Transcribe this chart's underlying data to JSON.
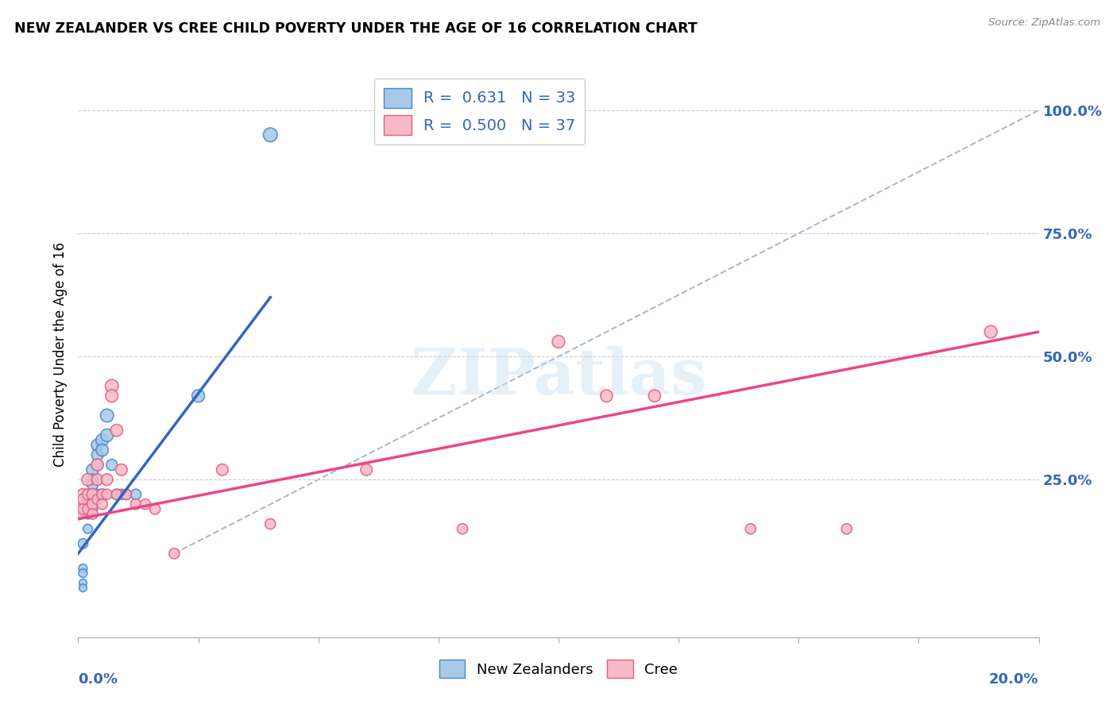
{
  "title": "NEW ZEALANDER VS CREE CHILD POVERTY UNDER THE AGE OF 16 CORRELATION CHART",
  "source": "Source: ZipAtlas.com",
  "ylabel": "Child Poverty Under the Age of 16",
  "ytick_labels": [
    "100.0%",
    "75.0%",
    "50.0%",
    "25.0%"
  ],
  "ytick_positions": [
    1.0,
    0.75,
    0.5,
    0.25
  ],
  "xmin": 0.0,
  "xmax": 0.2,
  "ymin": -0.07,
  "ymax": 1.08,
  "legend1_r": "0.631",
  "legend1_n": "33",
  "legend2_r": "0.500",
  "legend2_n": "37",
  "blue_fill": "#a8c8e8",
  "blue_edge": "#4488cc",
  "pink_fill": "#f8b8c8",
  "pink_edge": "#e06080",
  "blue_line": "#3366bb",
  "pink_line": "#ee4488",
  "ref_line_color": "#aabbcc",
  "nz_x": [
    0.0,
    0.001,
    0.001,
    0.001,
    0.001,
    0.001,
    0.002,
    0.002,
    0.002,
    0.002,
    0.002,
    0.003,
    0.003,
    0.003,
    0.003,
    0.003,
    0.003,
    0.004,
    0.004,
    0.004,
    0.004,
    0.005,
    0.005,
    0.005,
    0.006,
    0.006,
    0.007,
    0.008,
    0.009,
    0.01,
    0.012,
    0.025,
    0.04
  ],
  "nz_y": [
    0.19,
    0.12,
    0.07,
    0.06,
    0.04,
    0.03,
    0.21,
    0.2,
    0.19,
    0.18,
    0.15,
    0.27,
    0.25,
    0.24,
    0.22,
    0.2,
    0.19,
    0.32,
    0.3,
    0.28,
    0.22,
    0.33,
    0.31,
    0.22,
    0.38,
    0.34,
    0.28,
    0.22,
    0.22,
    0.22,
    0.22,
    0.42,
    0.95
  ],
  "nz_sizes": [
    300,
    80,
    60,
    60,
    50,
    50,
    100,
    90,
    90,
    80,
    70,
    120,
    100,
    100,
    90,
    90,
    80,
    120,
    110,
    100,
    90,
    130,
    120,
    90,
    140,
    130,
    100,
    90,
    90,
    90,
    90,
    130,
    160
  ],
  "cree_x": [
    0.0,
    0.001,
    0.001,
    0.001,
    0.002,
    0.002,
    0.002,
    0.003,
    0.003,
    0.003,
    0.004,
    0.004,
    0.004,
    0.005,
    0.005,
    0.006,
    0.006,
    0.007,
    0.007,
    0.008,
    0.008,
    0.009,
    0.01,
    0.012,
    0.014,
    0.016,
    0.02,
    0.03,
    0.04,
    0.06,
    0.08,
    0.1,
    0.11,
    0.12,
    0.14,
    0.16,
    0.19
  ],
  "cree_y": [
    0.19,
    0.22,
    0.21,
    0.19,
    0.25,
    0.22,
    0.19,
    0.22,
    0.2,
    0.18,
    0.28,
    0.25,
    0.21,
    0.22,
    0.2,
    0.25,
    0.22,
    0.44,
    0.42,
    0.35,
    0.22,
    0.27,
    0.22,
    0.2,
    0.2,
    0.19,
    0.1,
    0.27,
    0.16,
    0.27,
    0.15,
    0.53,
    0.42,
    0.42,
    0.15,
    0.15,
    0.55
  ],
  "cree_sizes": [
    350,
    110,
    100,
    90,
    120,
    100,
    90,
    110,
    100,
    90,
    120,
    110,
    90,
    100,
    90,
    110,
    90,
    140,
    130,
    120,
    90,
    110,
    90,
    90,
    90,
    90,
    90,
    110,
    90,
    110,
    90,
    130,
    120,
    120,
    90,
    90,
    130
  ],
  "nz_line_x0": 0.0,
  "nz_line_y0": 0.1,
  "nz_line_x1": 0.04,
  "nz_line_y1": 0.62,
  "pink_line_x0": 0.0,
  "pink_line_y0": 0.17,
  "pink_line_x1": 0.2,
  "pink_line_y1": 0.55,
  "ref_line_x0": 0.02,
  "ref_line_y0": 0.1,
  "ref_line_x1": 0.2,
  "ref_line_y1": 1.0
}
